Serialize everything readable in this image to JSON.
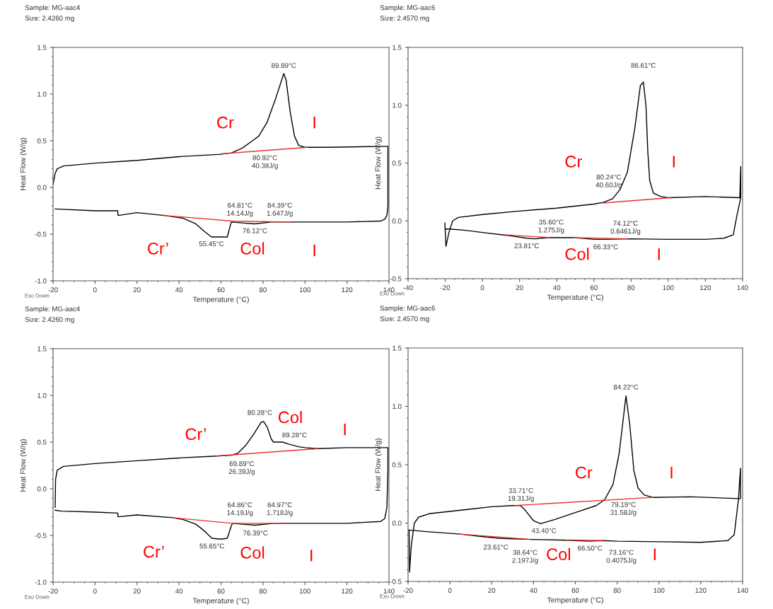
{
  "chart_data": [
    {
      "type": "line",
      "title": "Sample: MG-aac4",
      "subtitle": "Size: 2.4260 mg",
      "xlabel": "Temperature (°C)",
      "ylabel": "Heat Flow (W/g)",
      "xlim": [
        -20,
        140
      ],
      "xticks": [
        -20,
        0,
        20,
        40,
        60,
        80,
        100,
        120,
        140
      ],
      "ylim": [
        -1.0,
        1.5
      ],
      "yticks": [
        {
          "value": -1.0,
          "label": "-1.0"
        },
        {
          "value": -0.5,
          "label": "-0.5"
        },
        {
          "value": 0.0,
          "label": "0.0"
        },
        {
          "value": 0.5,
          "label": "0.5"
        },
        {
          "value": 1.0,
          "label": "1.0"
        },
        {
          "value": 1.5,
          "label": "1.5"
        }
      ],
      "grid": false,
      "legend": false,
      "series": [
        {
          "color": "#000000",
          "x": [
            -20,
            -19,
            -18,
            -15,
            0,
            20,
            40,
            60,
            65,
            70,
            75,
            78,
            82,
            86,
            89.89,
            91,
            93,
            95,
            97,
            100,
            110,
            138,
            139.5,
            139.5,
            139,
            138,
            136,
            120,
            100,
            93,
            84,
            76,
            70,
            65,
            64.5,
            63,
            60,
            55.45,
            52,
            48,
            42,
            33,
            20,
            11,
            10.8,
            0,
            -19
          ],
          "values": [
            0.03,
            0.15,
            0.2,
            0.23,
            0.26,
            0.29,
            0.33,
            0.355,
            0.37,
            0.42,
            0.5,
            0.55,
            0.7,
            0.95,
            1.22,
            1.15,
            0.8,
            0.55,
            0.45,
            0.43,
            0.43,
            0.44,
            0.44,
            -0.2,
            -0.3,
            -0.34,
            -0.36,
            -0.37,
            -0.37,
            -0.37,
            -0.37,
            -0.39,
            -0.38,
            -0.37,
            -0.4,
            -0.53,
            -0.53,
            -0.53,
            -0.47,
            -0.39,
            -0.33,
            -0.3,
            -0.27,
            -0.3,
            -0.25,
            -0.25,
            -0.23
          ]
        },
        {
          "color": "#e8302a",
          "x": [
            60,
            101
          ],
          "values": [
            0.36,
            0.43
          ]
        },
        {
          "color": "#e8302a",
          "x": [
            33,
            65,
            93
          ],
          "values": [
            -0.3,
            -0.36,
            -0.37
          ]
        }
      ],
      "annotations": [
        "89.89°C",
        "80.92°C\n40.38J/g",
        "64.81°C\n14.14J/g",
        "84.39°C\n1.647J/g",
        "76.12°C",
        "55.45°C",
        "Cr",
        "I",
        "Cr’",
        "Col",
        "I",
        "Exo Down"
      ]
    },
    {
      "type": "line",
      "title": "Sample: MG-aac6",
      "subtitle": "Size: 2.4570 mg",
      "xlabel": "Temperature (°C)",
      "ylabel": "Heat Flow (W/g)",
      "xlim": [
        -40,
        140
      ],
      "xticks": [
        -40,
        -20,
        0,
        20,
        40,
        60,
        80,
        100,
        120,
        140
      ],
      "ylim": [
        -0.5,
        1.5
      ],
      "yticks": [
        {
          "value": -0.5,
          "label": "-0.5"
        },
        {
          "value": 0.0,
          "label": "0.0"
        },
        {
          "value": 0.5,
          "label": "0.5"
        },
        {
          "value": 1.0,
          "label": "1.0"
        },
        {
          "value": 1.5,
          "label": "1.5"
        }
      ],
      "grid": false,
      "legend": false,
      "series": [
        {
          "color": "#000000",
          "x": [
            -20.2,
            -19.6,
            -18,
            -16,
            -13,
            0,
            20,
            40,
            60,
            65,
            70,
            74,
            78,
            82,
            85,
            86.61,
            88,
            89,
            90,
            92,
            96,
            100,
            120,
            138.5,
            139,
            139,
            137,
            135,
            130,
            120,
            100,
            80,
            66.33,
            60,
            50,
            36,
            28,
            23.81,
            13,
            0,
            -10,
            -18,
            -20
          ],
          "values": [
            -0.02,
            -0.22,
            -0.1,
            0.0,
            0.03,
            0.055,
            0.085,
            0.11,
            0.145,
            0.16,
            0.19,
            0.27,
            0.42,
            0.8,
            1.17,
            1.2,
            1.0,
            0.6,
            0.35,
            0.24,
            0.21,
            0.2,
            0.21,
            0.2,
            0.47,
            0.2,
            0.05,
            -0.12,
            -0.15,
            -0.16,
            -0.16,
            -0.155,
            -0.16,
            -0.16,
            -0.145,
            -0.145,
            -0.155,
            -0.15,
            -0.125,
            -0.1,
            -0.08,
            -0.07,
            -0.07
          ]
        },
        {
          "color": "#e8302a",
          "x": [
            65,
            101
          ],
          "values": [
            0.155,
            0.2
          ]
        },
        {
          "color": "#e8302a",
          "x": [
            12,
            36
          ],
          "values": [
            -0.12,
            -0.145
          ]
        },
        {
          "color": "#e8302a",
          "x": [
            49,
            78
          ],
          "values": [
            -0.145,
            -0.155
          ]
        }
      ],
      "annotations": [
        "86.61°C",
        "80.24°C\n40.60J/g",
        "35.60°C\n1.275J/g",
        "74.12°C\n0.6461J/g",
        "23.81°C",
        "66.33°C",
        "Cr",
        "I",
        "Col",
        "I",
        "Exo Down"
      ]
    },
    {
      "type": "line",
      "title": "Sample: MG-aac4",
      "subtitle": "Size: 2.4260 mg",
      "xlabel": "Temperature (°C)",
      "ylabel": "Heat Flow (W/g)",
      "xlim": [
        -20,
        140
      ],
      "xticks": [
        -20,
        0,
        20,
        40,
        60,
        80,
        100,
        120,
        140
      ],
      "ylim": [
        -1.0,
        1.5
      ],
      "yticks": [
        {
          "value": -1.0,
          "label": "-1.0"
        },
        {
          "value": -0.5,
          "label": "-0.5"
        },
        {
          "value": 0.0,
          "label": "0.0"
        },
        {
          "value": 0.5,
          "label": "0.5"
        },
        {
          "value": 1.0,
          "label": "1.0"
        },
        {
          "value": 1.5,
          "label": "1.5"
        }
      ],
      "grid": false,
      "legend": false,
      "series": [
        {
          "color": "#000000",
          "x": [
            -19,
            -18.8,
            -18,
            -15,
            0,
            20,
            40,
            58,
            65,
            68,
            72,
            76,
            79,
            80.28,
            82,
            84,
            85,
            89.28,
            92,
            97,
            100,
            106,
            120,
            138,
            139.5,
            139.5,
            139,
            138,
            136,
            120,
            100,
            90,
            85,
            76.39,
            70,
            65.5,
            64.86,
            63,
            60,
            55.65,
            52,
            48,
            42,
            37,
            20,
            11,
            10.8,
            0,
            -16,
            -19
          ],
          "values": [
            -0.2,
            0.1,
            0.2,
            0.24,
            0.27,
            0.3,
            0.33,
            0.35,
            0.36,
            0.38,
            0.47,
            0.6,
            0.71,
            0.72,
            0.66,
            0.53,
            0.5,
            0.5,
            0.48,
            0.45,
            0.44,
            0.43,
            0.44,
            0.44,
            0.44,
            0.2,
            -0.2,
            -0.32,
            -0.35,
            -0.37,
            -0.37,
            -0.37,
            -0.37,
            -0.39,
            -0.38,
            -0.37,
            -0.4,
            -0.53,
            -0.54,
            -0.53,
            -0.45,
            -0.38,
            -0.33,
            -0.31,
            -0.28,
            -0.3,
            -0.26,
            -0.25,
            -0.24,
            -0.23
          ]
        },
        {
          "color": "#e8302a",
          "x": [
            57.5,
            106
          ],
          "values": [
            0.35,
            0.43
          ]
        },
        {
          "color": "#e8302a",
          "x": [
            37,
            65.5,
            90
          ],
          "values": [
            -0.31,
            -0.37,
            -0.37
          ]
        }
      ],
      "annotations": [
        "80.28°C",
        "89.28°C",
        "69.89°C\n26.39J/g",
        "64.86°C\n14.19J/g",
        "84.97°C\n1.718J/g",
        "76.39°C",
        "55.65°C",
        "Cr’",
        "Col",
        "I",
        "Cr’",
        "Col",
        "I",
        "Exo Down"
      ]
    },
    {
      "type": "line",
      "title": "Sample: MG-aac6",
      "subtitle": "Size: 2.4570 mg",
      "xlabel": "Temperature (°C)",
      "ylabel": "Heat Flow (W/g)",
      "xlim": [
        -20,
        140
      ],
      "xticks": [
        -20,
        0,
        20,
        40,
        60,
        80,
        100,
        120,
        140
      ],
      "ylim": [
        -0.5,
        1.5
      ],
      "yticks": [
        {
          "value": -0.5,
          "label": "-0.5"
        },
        {
          "value": 0.0,
          "label": "0.0"
        },
        {
          "value": 0.5,
          "label": "0.5"
        },
        {
          "value": 1.0,
          "label": "1.0"
        },
        {
          "value": 1.5,
          "label": "1.5"
        }
      ],
      "grid": false,
      "legend": false,
      "series": [
        {
          "color": "#000000",
          "x": [
            -19.5,
            -19.3,
            -18.5,
            -17,
            -15,
            -10,
            0,
            10,
            20,
            30,
            33.71,
            36,
            40,
            43.4,
            50,
            60,
            70,
            74,
            78,
            81,
            84.22,
            86,
            88,
            90,
            93,
            97,
            115,
            138,
            139,
            139,
            138,
            136,
            133,
            120,
            100,
            80,
            73.16,
            66.5,
            56,
            38.64,
            30,
            23.61,
            15,
            5,
            -10,
            -19.8
          ],
          "values": [
            -0.06,
            -0.42,
            -0.2,
            0.0,
            0.05,
            0.08,
            0.1,
            0.12,
            0.14,
            0.15,
            0.15,
            0.11,
            0.02,
            -0.005,
            0.03,
            0.09,
            0.15,
            0.2,
            0.33,
            0.6,
            1.09,
            0.85,
            0.45,
            0.3,
            0.24,
            0.22,
            0.225,
            0.21,
            0.21,
            0.47,
            0.2,
            -0.1,
            -0.15,
            -0.165,
            -0.16,
            -0.155,
            -0.15,
            -0.155,
            -0.147,
            -0.14,
            -0.135,
            -0.13,
            -0.115,
            -0.095,
            -0.075,
            -0.06
          ]
        },
        {
          "color": "#e8302a",
          "x": [
            31,
            97
          ],
          "values": [
            0.15,
            0.22
          ]
        },
        {
          "color": "#e8302a",
          "x": [
            5,
            38.64
          ],
          "values": [
            -0.095,
            -0.14
          ]
        },
        {
          "color": "#e8302a",
          "x": [
            56,
            73.5
          ],
          "values": [
            -0.145,
            -0.15
          ]
        }
      ],
      "annotations": [
        "84.22°C",
        "33.71°C\n19.31J/g",
        "79.19°C\n31.58J/g",
        "43.40°C",
        "23.61°C",
        "38.64°C\n2.197J/g",
        "66.50°C",
        "73.16°C\n0.4075J/g",
        "Cr",
        "I",
        "Col",
        "I",
        "Exo Down"
      ]
    }
  ]
}
